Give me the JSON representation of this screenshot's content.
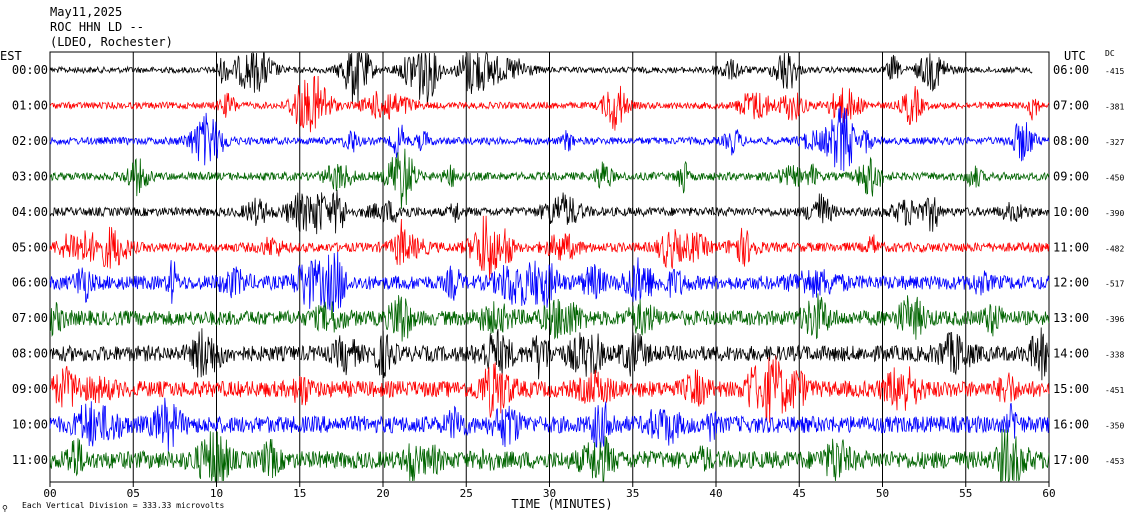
{
  "header": {
    "line1": "May11,2025",
    "line2": "ROC HHN LD --",
    "line3": "(LDEO, Rochester)",
    "left_tz": "EST",
    "right_tz": "UTC",
    "dc_label": "DC"
  },
  "footer": {
    "logo_glyph": "⚲",
    "scale_text": "Each Vertical Division =  333.33 microvolts"
  },
  "chart_data": {
    "type": "line",
    "title": "",
    "xlabel": "TIME (MINUTES)",
    "ylabel": "",
    "xlim": [
      0,
      60
    ],
    "x_ticks": [
      "00",
      "05",
      "10",
      "15",
      "20",
      "25",
      "30",
      "35",
      "40",
      "45",
      "50",
      "55",
      "60"
    ],
    "grid": "vertical lines every 5 minutes",
    "trace_colors": [
      "#000000",
      "#ff0000",
      "#0000ff",
      "#006400"
    ],
    "rows": [
      {
        "left": "00:00",
        "right": "06:00",
        "dc": "-415"
      },
      {
        "left": "01:00",
        "right": "07:00",
        "dc": "-381"
      },
      {
        "left": "02:00",
        "right": "08:00",
        "dc": "-327"
      },
      {
        "left": "03:00",
        "right": "09:00",
        "dc": "-450"
      },
      {
        "left": "04:00",
        "right": "10:00",
        "dc": "-390"
      },
      {
        "left": "05:00",
        "right": "11:00",
        "dc": "-482"
      },
      {
        "left": "06:00",
        "right": "12:00",
        "dc": "-517"
      },
      {
        "left": "07:00",
        "right": "13:00",
        "dc": "-396"
      },
      {
        "left": "08:00",
        "right": "14:00",
        "dc": "-338"
      },
      {
        "left": "09:00",
        "right": "15:00",
        "dc": "-451"
      },
      {
        "left": "10:00",
        "right": "16:00",
        "dc": "-350"
      },
      {
        "left": "11:00",
        "right": "17:00",
        "dc": "-453"
      }
    ]
  }
}
